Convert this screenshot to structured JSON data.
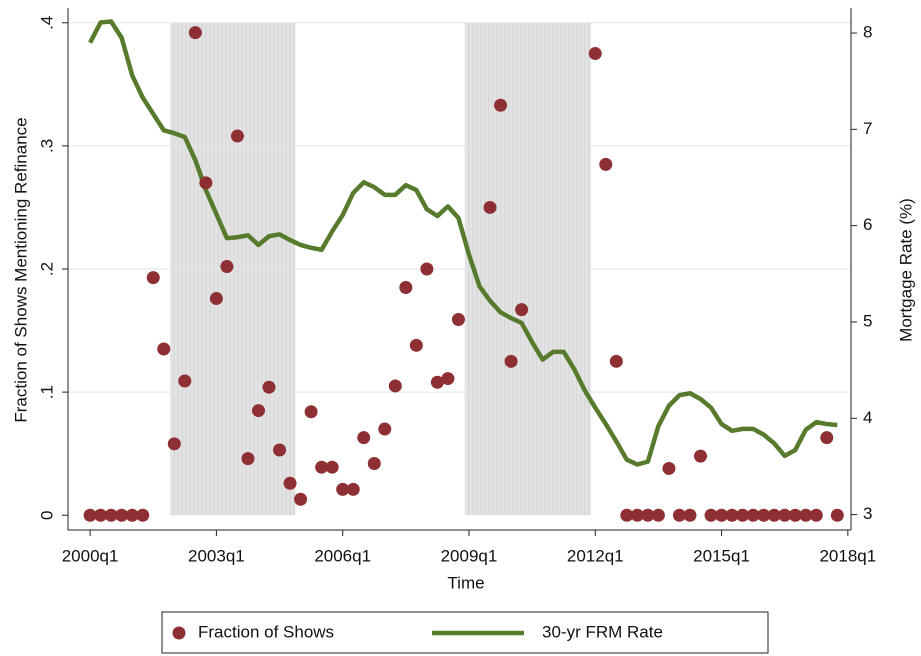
{
  "chart_data": {
    "type": "scatter",
    "x_label": "Time",
    "y_label": "Fraction of Shows Mentioning Refinance",
    "y2_label": "Mortgage Rate (%)",
    "x": [
      160,
      161,
      162,
      163,
      164,
      165,
      166,
      167,
      168,
      169,
      170,
      171,
      172,
      173,
      174,
      175,
      176,
      177,
      178,
      179,
      180,
      181,
      182,
      183,
      184,
      185,
      186,
      187,
      188,
      189,
      190,
      191,
      192,
      193,
      194,
      195,
      196,
      197,
      198,
      199,
      200,
      201,
      202,
      203,
      204,
      205,
      206,
      207,
      208,
      209,
      210,
      211,
      212,
      213,
      214,
      215,
      216,
      217,
      218,
      219,
      220,
      221,
      222,
      223,
      224,
      225,
      226,
      227,
      228,
      229,
      230,
      231
    ],
    "series": [
      {
        "name": "Fraction of Shows",
        "type": "scatter",
        "color": "#8e2f33",
        "values": [
          0,
          0,
          0,
          0,
          0,
          0,
          0.193,
          0.135,
          0.058,
          0.109,
          0.392,
          0.27,
          0.176,
          0.202,
          0.308,
          0.046,
          0.085,
          0.104,
          0.053,
          0.026,
          0.013,
          0.084,
          0.039,
          0.039,
          0.021,
          0.021,
          0.063,
          0.042,
          0.07,
          0.105,
          0.185,
          0.138,
          0.2,
          0.108,
          0.111,
          0.159,
          null,
          null,
          0.25,
          0.333,
          0.125,
          0.167,
          null,
          null,
          null,
          null,
          null,
          null,
          0.375,
          0.285,
          0.125,
          0,
          0,
          0,
          0,
          0.038,
          0,
          0,
          0.048,
          0,
          0,
          0,
          0,
          0,
          0,
          0,
          0,
          0,
          0,
          0,
          0.063,
          0
        ]
      },
      {
        "name": "30-yr FRM Rate",
        "type": "line",
        "axis": "y2",
        "color": "#587a2c",
        "values": [
          7.9,
          8.11,
          8.12,
          7.95,
          7.56,
          7.33,
          7.16,
          6.99,
          6.96,
          6.92,
          6.68,
          6.37,
          6.12,
          5.87,
          5.88,
          5.9,
          5.8,
          5.89,
          5.91,
          5.85,
          5.8,
          5.77,
          5.75,
          5.94,
          6.11,
          6.34,
          6.45,
          6.4,
          6.32,
          6.32,
          6.42,
          6.37,
          6.17,
          6.1,
          6.2,
          6.08,
          5.7,
          5.37,
          5.22,
          5.1,
          5.04,
          4.99,
          4.79,
          4.61,
          4.69,
          4.69,
          4.51,
          4.29,
          4.11,
          3.94,
          3.76,
          3.57,
          3.52,
          3.55,
          3.92,
          4.13,
          4.24,
          4.26,
          4.2,
          4.11,
          3.94,
          3.87,
          3.89,
          3.89,
          3.83,
          3.74,
          3.61,
          3.67,
          3.88,
          3.96,
          3.94,
          3.93
        ]
      }
    ],
    "shaded": [
      [
        167.6,
        179.5
      ],
      [
        195.6,
        207.6
      ]
    ],
    "xlim": [
      157.9,
      232.3
    ],
    "xticks": [
      {
        "value": 160,
        "label": "2000q1"
      },
      {
        "value": 172,
        "label": "2003q1"
      },
      {
        "value": 184,
        "label": "2006q1"
      },
      {
        "value": 196,
        "label": "2009q1"
      },
      {
        "value": 208,
        "label": "2012q1"
      },
      {
        "value": 220,
        "label": "2015q1"
      },
      {
        "value": 232,
        "label": "2018q1"
      }
    ],
    "ylim": [
      -0.012,
      0.412
    ],
    "yticks": [
      0,
      {
        "value": 0.1,
        "label": ".1"
      },
      {
        "value": 0.2,
        "label": ".2"
      },
      {
        "value": 0.3,
        "label": ".3"
      },
      {
        "value": 0.4,
        "label": ".4"
      }
    ],
    "y2lim": [
      2.84,
      8.26
    ],
    "y2ticks": [
      3,
      4,
      5,
      6,
      7,
      8
    ],
    "grid": true
  }
}
